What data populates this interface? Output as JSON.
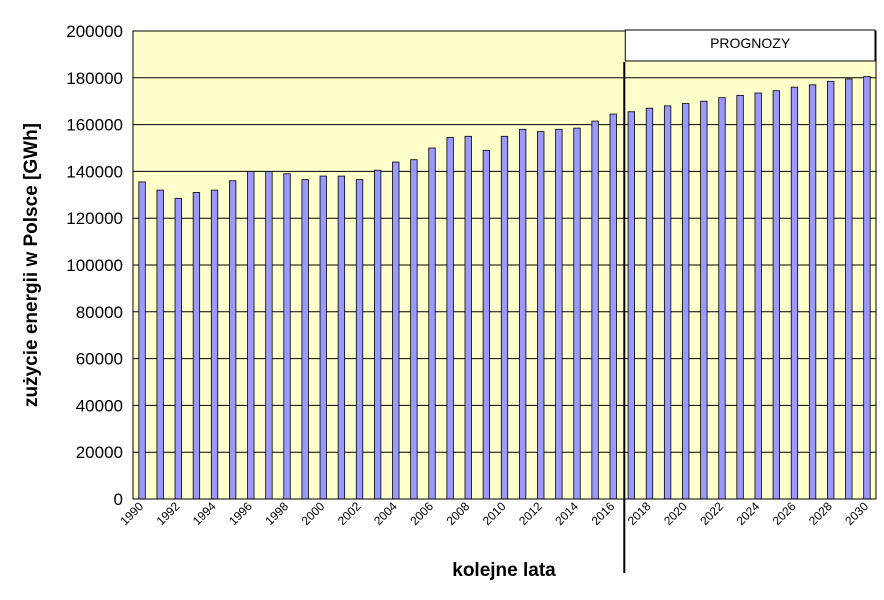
{
  "chart_data": {
    "type": "bar",
    "title": "",
    "xlabel": "kolejne lata",
    "ylabel": "zużycie energii w Polsce [GWh]",
    "ylim": [
      0,
      200000
    ],
    "yticks": [
      "0",
      "20000",
      "40000",
      "60000",
      "80000",
      "100000",
      "120000",
      "140000",
      "160000",
      "180000",
      "200000"
    ],
    "grid": true,
    "plot_background": "#ffffcc",
    "bar_color": "#9999ff",
    "annotation": "PROGNOZY",
    "forecast_from": "2017",
    "categories": [
      "1990",
      "1991",
      "1992",
      "1993",
      "1994",
      "1995",
      "1996",
      "1997",
      "1998",
      "1999",
      "2000",
      "2001",
      "2002",
      "2003",
      "2004",
      "2005",
      "2006",
      "2007",
      "2008",
      "2009",
      "2010",
      "2011",
      "2012",
      "2013",
      "2014",
      "2015",
      "2016",
      "2017",
      "2018",
      "2019",
      "2020",
      "2021",
      "2022",
      "2023",
      "2024",
      "2025",
      "2026",
      "2027",
      "2028",
      "2029",
      "2030"
    ],
    "tick_labels": [
      "1990",
      "1992",
      "1994",
      "1996",
      "1998",
      "2000",
      "2002",
      "2004",
      "2006",
      "2008",
      "2010",
      "2012",
      "2014",
      "2016",
      "2018",
      "2020",
      "2022",
      "2024",
      "2026",
      "2028",
      "2030"
    ],
    "series": [
      {
        "values": [
          135500,
          132000,
          128500,
          131000,
          132000,
          136000,
          140000,
          140000,
          139000,
          136500,
          138000,
          138000,
          136500,
          140500,
          144000,
          145000,
          150000,
          154500,
          155000,
          149000,
          155000,
          158000,
          157000,
          158000,
          158500,
          161500,
          164500,
          165500,
          167000,
          168000,
          169000,
          170000,
          171500,
          172500,
          173500,
          174500,
          176000,
          177000,
          178500,
          179500,
          180500
        ]
      }
    ]
  }
}
